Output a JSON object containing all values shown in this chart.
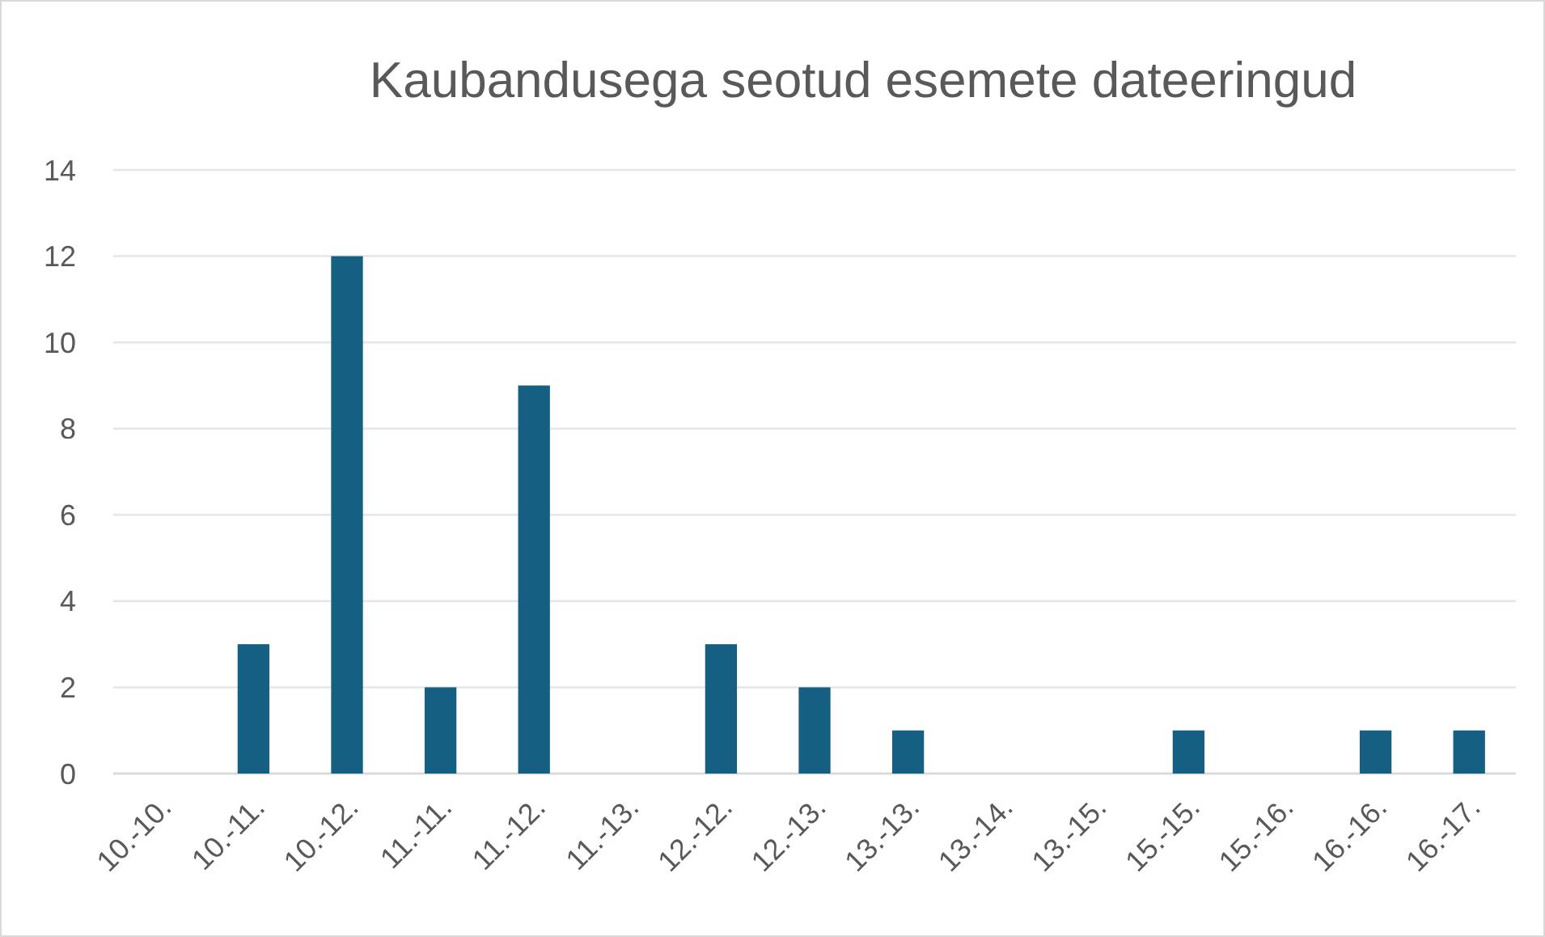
{
  "chart_data": {
    "type": "bar",
    "title": "Kaubandusega seotud esemete dateeringud",
    "categories": [
      "10.-10.",
      "10.-11.",
      "10.-12.",
      "11.-11.",
      "11.-12.",
      "11.-13.",
      "12.-12.",
      "12.-13.",
      "13.-13.",
      "13.-14.",
      "13.-15.",
      "15.-15.",
      "15.-16.",
      "16.-16.",
      "16.-17."
    ],
    "values": [
      0,
      3,
      12,
      2,
      9,
      0,
      3,
      2,
      1,
      0,
      0,
      1,
      0,
      1,
      1
    ],
    "color": "#156082",
    "ylim": [
      0,
      14
    ],
    "yticks": [
      0,
      2,
      4,
      6,
      8,
      10,
      12,
      14
    ],
    "grid": "y"
  }
}
